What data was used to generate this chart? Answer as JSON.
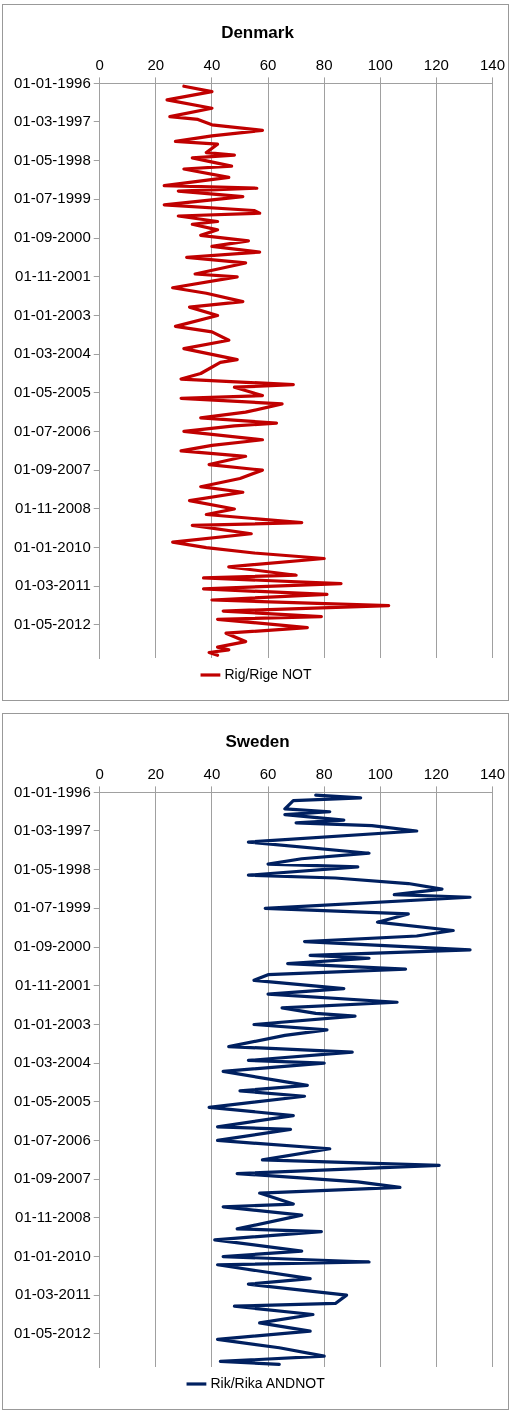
{
  "chart_data": [
    {
      "type": "line",
      "title": "Denmark",
      "orientation": "horizontal",
      "xlim": [
        0,
        140
      ],
      "xticks": [
        0,
        20,
        40,
        60,
        80,
        100,
        120,
        140
      ],
      "ylim": [
        "2013-05-01",
        "1996-01-01"
      ],
      "yticks": [
        {
          "value": "1996-01-01",
          "label": "01-01-1996"
        },
        {
          "value": "1997-03-01",
          "label": "01-03-1997"
        },
        {
          "value": "1998-05-01",
          "label": "01-05-1998"
        },
        {
          "value": "1999-07-01",
          "label": "01-07-1999"
        },
        {
          "value": "2000-09-01",
          "label": "01-09-2000"
        },
        {
          "value": "2001-11-01",
          "label": "01-11-2001"
        },
        {
          "value": "2003-01-01",
          "label": "01-01-2003"
        },
        {
          "value": "2004-03-01",
          "label": "01-03-2004"
        },
        {
          "value": "2005-05-01",
          "label": "01-05-2005"
        },
        {
          "value": "2006-07-01",
          "label": "01-07-2006"
        },
        {
          "value": "2007-09-01",
          "label": "01-09-2007"
        },
        {
          "value": "2008-11-01",
          "label": "01-11-2008"
        },
        {
          "value": "2010-01-01",
          "label": "01-01-2010"
        },
        {
          "value": "2011-03-01",
          "label": "01-03-2011"
        },
        {
          "value": "2012-05-01",
          "label": "01-05-2012"
        }
      ],
      "grid": "x",
      "legend": "bottom",
      "series": [
        {
          "name": "Rig/Rige NOT",
          "color": "#c00000",
          "x": [
            "1996-02",
            "1996-04",
            "1996-07",
            "1996-10",
            "1997-01",
            "1997-02",
            "1997-04",
            "1997-06",
            "1997-08",
            "1997-10",
            "1997-11",
            "1998-02",
            "1998-03",
            "1998-04",
            "1998-07",
            "1998-08",
            "1998-11",
            "1999-02",
            "1999-03",
            "1999-04",
            "1999-06",
            "1999-09",
            "1999-11",
            "1999-12",
            "2000-01",
            "2000-03",
            "2000-04",
            "2000-06",
            "2000-08",
            "2000-10",
            "2000-12",
            "2001-02",
            "2001-04",
            "2001-06",
            "2001-10",
            "2001-11",
            "2002-03",
            "2002-05",
            "2002-08",
            "2002-10",
            "2003-01",
            "2003-05",
            "2003-07",
            "2003-10",
            "2004-01",
            "2004-05",
            "2004-06",
            "2004-10",
            "2004-12",
            "2005-02",
            "2005-03",
            "2005-06",
            "2005-07",
            "2005-09",
            "2005-12",
            "2006-02",
            "2006-04",
            "2006-05",
            "2006-07",
            "2006-10",
            "2006-12",
            "2007-02",
            "2007-04",
            "2007-07",
            "2007-09",
            "2007-12",
            "2008-03",
            "2008-05",
            "2008-08",
            "2008-11",
            "2009-01",
            "2009-04",
            "2009-05",
            "2009-08",
            "2009-11",
            "2010-01",
            "2010-03",
            "2010-05",
            "2010-08",
            "2010-11",
            "2010-12",
            "2011-02",
            "2011-04",
            "2011-06",
            "2011-08",
            "2011-10",
            "2011-12",
            "2012-02",
            "2012-03",
            "2012-06",
            "2012-08",
            "2012-11",
            "2013-01",
            "2013-02",
            "2013-03",
            "2013-04"
          ],
          "values": [
            30,
            40,
            24,
            40,
            25,
            35,
            40,
            58,
            40,
            27,
            42,
            38,
            48,
            33,
            47,
            30,
            46,
            23,
            56,
            28,
            51,
            23,
            55,
            57,
            28,
            42,
            33,
            42,
            36,
            53,
            40,
            57,
            31,
            52,
            34,
            49,
            26,
            38,
            51,
            32,
            42,
            27,
            40,
            46,
            30,
            49,
            43,
            36,
            29,
            69,
            48,
            58,
            29,
            65,
            52,
            36,
            63,
            48,
            30,
            58,
            40,
            29,
            52,
            39,
            58,
            50,
            36,
            51,
            32,
            48,
            38,
            72,
            33,
            54,
            26,
            38,
            55,
            80,
            46,
            70,
            37,
            86,
            37,
            81,
            40,
            103,
            44,
            79,
            42,
            74,
            45,
            52,
            42,
            46,
            39,
            42
          ]
        }
      ]
    },
    {
      "type": "line",
      "title": "Sweden",
      "orientation": "horizontal",
      "xlim": [
        0,
        140
      ],
      "xticks": [
        0,
        20,
        40,
        60,
        80,
        100,
        120,
        140
      ],
      "ylim": [
        "2013-05-01",
        "1996-01-01"
      ],
      "yticks": [
        {
          "value": "1996-01-01",
          "label": "01-01-1996"
        },
        {
          "value": "1997-03-01",
          "label": "01-03-1997"
        },
        {
          "value": "1998-05-01",
          "label": "01-05-1998"
        },
        {
          "value": "1999-07-01",
          "label": "01-07-1999"
        },
        {
          "value": "2000-09-01",
          "label": "01-09-2000"
        },
        {
          "value": "2001-11-01",
          "label": "01-11-2001"
        },
        {
          "value": "2003-01-01",
          "label": "01-01-2003"
        },
        {
          "value": "2004-03-01",
          "label": "01-03-2004"
        },
        {
          "value": "2005-05-01",
          "label": "01-05-2005"
        },
        {
          "value": "2006-07-01",
          "label": "01-07-2006"
        },
        {
          "value": "2007-09-01",
          "label": "01-09-2007"
        },
        {
          "value": "2008-11-01",
          "label": "01-11-2008"
        },
        {
          "value": "2010-01-01",
          "label": "01-01-2010"
        },
        {
          "value": "2011-03-01",
          "label": "01-03-2011"
        },
        {
          "value": "2012-05-01",
          "label": "01-05-2012"
        }
      ],
      "grid": "x",
      "legend": "bottom",
      "series": [
        {
          "name": "Rik/Rika ANDNOT",
          "color": "#002060",
          "x": [
            "1996-02",
            "1996-03",
            "1996-04",
            "1996-07",
            "1996-08",
            "1996-09",
            "1996-11",
            "1996-12",
            "1997-01",
            "1997-03",
            "1997-07",
            "1997-11",
            "1998-01",
            "1998-03",
            "1998-04",
            "1998-07",
            "1998-08",
            "1998-10",
            "1998-12",
            "1999-02",
            "1999-03",
            "1999-07",
            "1999-09",
            "1999-12",
            "2000-03",
            "2000-05",
            "2000-07",
            "2000-10",
            "2000-12",
            "2001-01",
            "2001-03",
            "2001-05",
            "2001-07",
            "2001-09",
            "2001-12",
            "2002-02",
            "2002-05",
            "2002-07",
            "2002-09",
            "2002-10",
            "2003-01",
            "2003-03",
            "2003-05",
            "2003-09",
            "2003-11",
            "2004-02",
            "2004-03",
            "2004-06",
            "2004-11",
            "2005-01",
            "2005-03",
            "2005-07",
            "2005-10",
            "2006-02",
            "2006-03",
            "2006-07",
            "2006-10",
            "2007-02",
            "2007-04",
            "2007-07",
            "2007-10",
            "2007-12",
            "2008-02",
            "2008-06",
            "2008-07",
            "2008-10",
            "2009-03",
            "2009-04",
            "2009-07",
            "2009-11",
            "2010-01",
            "2010-03",
            "2010-04",
            "2010-09",
            "2010-11",
            "2011-03",
            "2011-06",
            "2011-07",
            "2011-10",
            "2012-01",
            "2012-04",
            "2012-07",
            "2012-10",
            "2013-01",
            "2013-03",
            "2013-04"
          ],
          "values": [
            77,
            93,
            69,
            66,
            82,
            66,
            87,
            70,
            97,
            113,
            53,
            96,
            72,
            60,
            92,
            53,
            84,
            110,
            122,
            105,
            132,
            59,
            110,
            99,
            126,
            113,
            73,
            132,
            75,
            96,
            67,
            109,
            60,
            55,
            87,
            60,
            106,
            65,
            77,
            91,
            55,
            81,
            66,
            46,
            90,
            53,
            80,
            44,
            74,
            50,
            73,
            39,
            69,
            42,
            68,
            42,
            82,
            58,
            121,
            49,
            92,
            107,
            57,
            69,
            44,
            72,
            49,
            79,
            41,
            72,
            44,
            96,
            42,
            75,
            53,
            88,
            84,
            48,
            76,
            57,
            75,
            42,
            64,
            80,
            43,
            64
          ]
        }
      ]
    }
  ]
}
